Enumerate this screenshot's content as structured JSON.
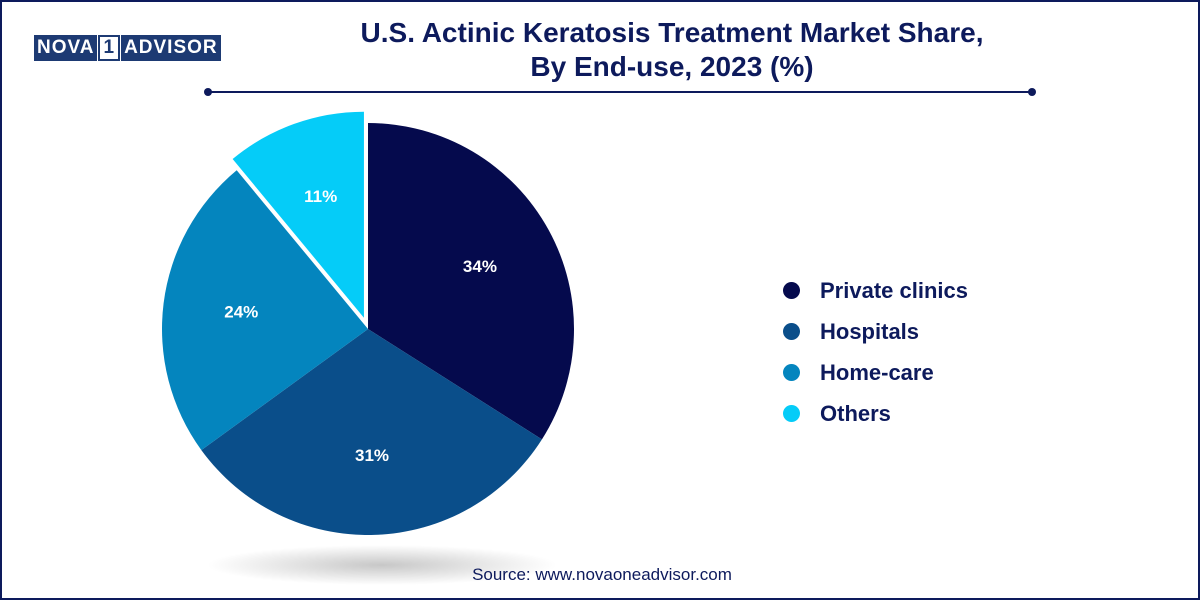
{
  "logo": {
    "left": "NOVA",
    "middle": "1",
    "right": "ADVISOR"
  },
  "title": {
    "line1": "U.S. Actinic Keratosis Treatment Market Share,",
    "line2": "By End-use, 2023 (%)"
  },
  "source": "Source: www.novaoneadvisor.com",
  "chart_data": {
    "type": "pie",
    "title": "U.S. Actinic Keratosis Treatment Market Share, By End-use, 2023 (%)",
    "legend_position": "right",
    "slices": [
      {
        "label": "Private clinics",
        "value": 34,
        "display": "34%",
        "color": "#050a4d"
      },
      {
        "label": "Hospitals",
        "value": 31,
        "display": "31%",
        "color": "#0a4e8a"
      },
      {
        "label": "Home-care",
        "value": 24,
        "display": "24%",
        "color": "#0485be"
      },
      {
        "label": "Others",
        "value": 11,
        "display": "11%",
        "color": "#05ccf8"
      }
    ]
  }
}
